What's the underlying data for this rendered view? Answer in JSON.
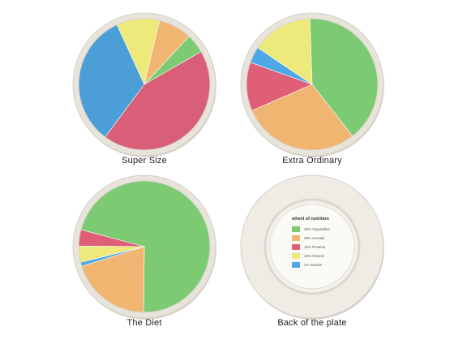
{
  "colors": {
    "vegetables": "#7ccb73",
    "cereals": "#f0b570",
    "proteins": "#e05f78",
    "cheese": "#ede97a",
    "sweets": "#4ea8e6",
    "pink": "#d95f79",
    "blue": "#4c9fd6",
    "rim": "#e4e0d8",
    "back": "#efece6"
  },
  "plates": [
    {
      "caption": "Super Size",
      "chart_data": {
        "type": "pie",
        "values": [
          37,
          28,
          9,
          7,
          4
        ],
        "colors": [
          "pink",
          "blue",
          "cheese",
          "cereals",
          "vegetables"
        ],
        "start_angle_deg": -30
      }
    },
    {
      "caption": "Extra Ordinary",
      "chart_data": {
        "type": "pie",
        "values": [
          40,
          29,
          12,
          15,
          4
        ],
        "colors": [
          "vegetables",
          "cereals",
          "proteins",
          "cheese",
          "sweets"
        ],
        "order": [
          0,
          1,
          2,
          4,
          3
        ],
        "start_angle_deg": -92
      }
    },
    {
      "caption": "The Diet",
      "chart_data": {
        "type": "pie",
        "values": [
          71,
          20,
          1,
          4,
          4
        ],
        "colors": [
          "vegetables",
          "cereals",
          "sweets",
          "cheese",
          "proteins"
        ],
        "start_angle_deg": -165
      }
    }
  ],
  "back_plate": {
    "caption": "Back of the plate",
    "legend": {
      "title": "wheel of nutrition",
      "items": [
        {
          "label": "40% Vegetables",
          "color": "vegetables"
        },
        {
          "label": "29% Cereals",
          "color": "cereals"
        },
        {
          "label": "12% Proteins",
          "color": "proteins"
        },
        {
          "label": "15% Cheese",
          "color": "cheese"
        },
        {
          "label": "4% Sweets",
          "color": "sweets"
        }
      ]
    }
  }
}
